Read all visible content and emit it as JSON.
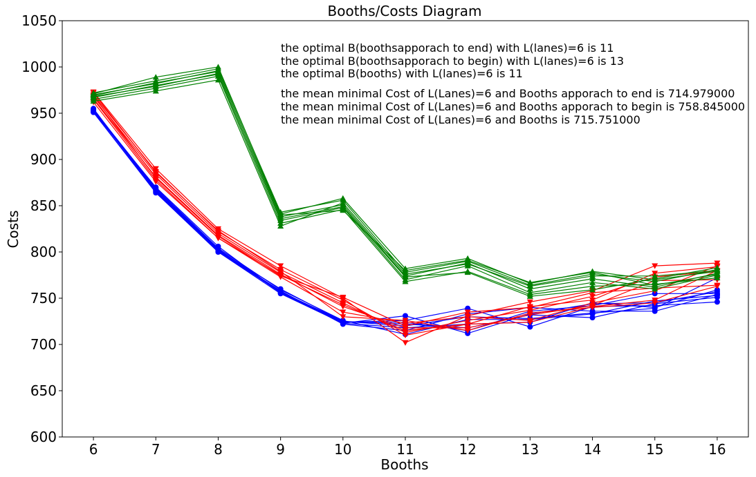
{
  "chart_data": {
    "type": "line",
    "title": "Booths/Costs Diagram",
    "xlabel": "Booths",
    "ylabel": "Costs",
    "x": [
      6,
      7,
      8,
      9,
      10,
      11,
      12,
      13,
      14,
      15,
      16
    ],
    "xlim": [
      5.5,
      16.5
    ],
    "ylim": [
      600,
      1050
    ],
    "yticks": [
      600,
      650,
      700,
      750,
      800,
      850,
      900,
      950,
      1000,
      1050
    ],
    "grid": false,
    "colors": {
      "blue": "#0000ff",
      "red": "#ff0000",
      "green": "#008000"
    },
    "annotations": [
      "the optimal B(boothsapporach to end) with L(lanes)=6 is 11",
      "the optimal B(boothsapporach to begin) with L(lanes)=6 is 13",
      "the optimal B(booths) with L(lanes)=6 is 11",
      "the mean minimal Cost of L(Lanes)=6 and Booths apporach to end is 714.979000",
      "the mean minimal Cost of L(Lanes)=6 and Booths apporach to begin is 758.845000",
      "the mean minimal Cost of L(Lanes)=6 and Booths  is 715.751000"
    ],
    "groups": [
      {
        "color": "blue",
        "marker": "circle",
        "series": [
          {
            "values": [
              951,
              865,
              800,
              755,
              723,
              731,
              712,
              733,
              744,
              745,
              757
            ]
          },
          {
            "values": [
              953,
              867,
              802,
              756,
              724,
              726,
              739,
              719,
              741,
              742,
              746
            ]
          },
          {
            "values": [
              952,
              868,
              803,
              757,
              725,
              722,
              718,
              732,
              729,
              744,
              751
            ]
          },
          {
            "values": [
              955,
              866,
              801,
              758,
              722,
              715,
              733,
              740,
              736,
              736,
              754
            ]
          },
          {
            "values": [
              954,
              869,
              804,
              759,
              726,
              711,
              727,
              727,
              733,
              747,
              753
            ]
          },
          {
            "values": [
              952,
              870,
              806,
              756,
              723,
              718,
              722,
              724,
              745,
              740,
              759
            ]
          },
          {
            "values": [
              951,
              864,
              800,
              757,
              724,
              724,
              715,
              736,
              742,
              755,
              755
            ]
          },
          {
            "values": [
              953,
              866,
              802,
              760,
              725,
              720,
              730,
              728,
              734,
              739,
              772
            ]
          }
        ]
      },
      {
        "color": "red",
        "marker": "triangle-down",
        "series": [
          {
            "values": [
              973,
              890,
              825,
              785,
              750,
              702,
              731,
              746,
              758,
              785,
              788
            ]
          },
          {
            "values": [
              970,
              887,
              822,
              781,
              748,
              710,
              722,
              741,
              748,
              777,
              784
            ]
          },
          {
            "values": [
              968,
              884,
              820,
              778,
              745,
              713,
              726,
              737,
              752,
              773,
              779
            ]
          },
          {
            "values": [
              966,
              881,
              818,
              776,
              741,
              718,
              718,
              732,
              742,
              769,
              770
            ]
          },
          {
            "values": [
              965,
              878,
              815,
              773,
              735,
              723,
              730,
              726,
              745,
              758,
              785
            ]
          },
          {
            "values": [
              972,
              886,
              823,
              779,
              730,
              726,
              715,
              734,
              740,
              745,
              763
            ]
          },
          {
            "values": [
              969,
              880,
              817,
              774,
              751,
              720,
              735,
              740,
              756,
              761,
              764
            ]
          },
          {
            "values": [
              962,
              876,
              815,
              775,
              743,
              715,
              722,
              724,
              741,
              748,
              780
            ]
          }
        ]
      },
      {
        "color": "green",
        "marker": "triangle-up",
        "series": [
          {
            "values": [
              971,
              989,
              1000,
              841,
              858,
              782,
              793,
              766,
              779,
              770,
              779
            ]
          },
          {
            "values": [
              972,
              985,
              998,
              843,
              856,
              778,
              790,
              764,
              776,
              768,
              781
            ]
          },
          {
            "values": [
              970,
              982,
              996,
              838,
              851,
              774,
              788,
              760,
              771,
              762,
              777
            ]
          },
          {
            "values": [
              968,
              979,
              993,
              834,
              848,
              770,
              785,
              756,
              767,
              760,
              775
            ]
          },
          {
            "values": [
              965,
              977,
              990,
              831,
              846,
              768,
              779,
              754,
              763,
              765,
              772
            ]
          },
          {
            "values": [
              963,
              974,
              986,
              828,
              853,
              776,
              787,
              763,
              774,
              774,
              780
            ]
          },
          {
            "values": [
              967,
              980,
              992,
              836,
              849,
              773,
              778,
              752,
              759,
              771,
              783
            ]
          },
          {
            "values": [
              969,
              983,
              995,
              840,
              845,
              780,
              791,
              767,
              778,
              764,
              776
            ]
          }
        ]
      }
    ]
  }
}
